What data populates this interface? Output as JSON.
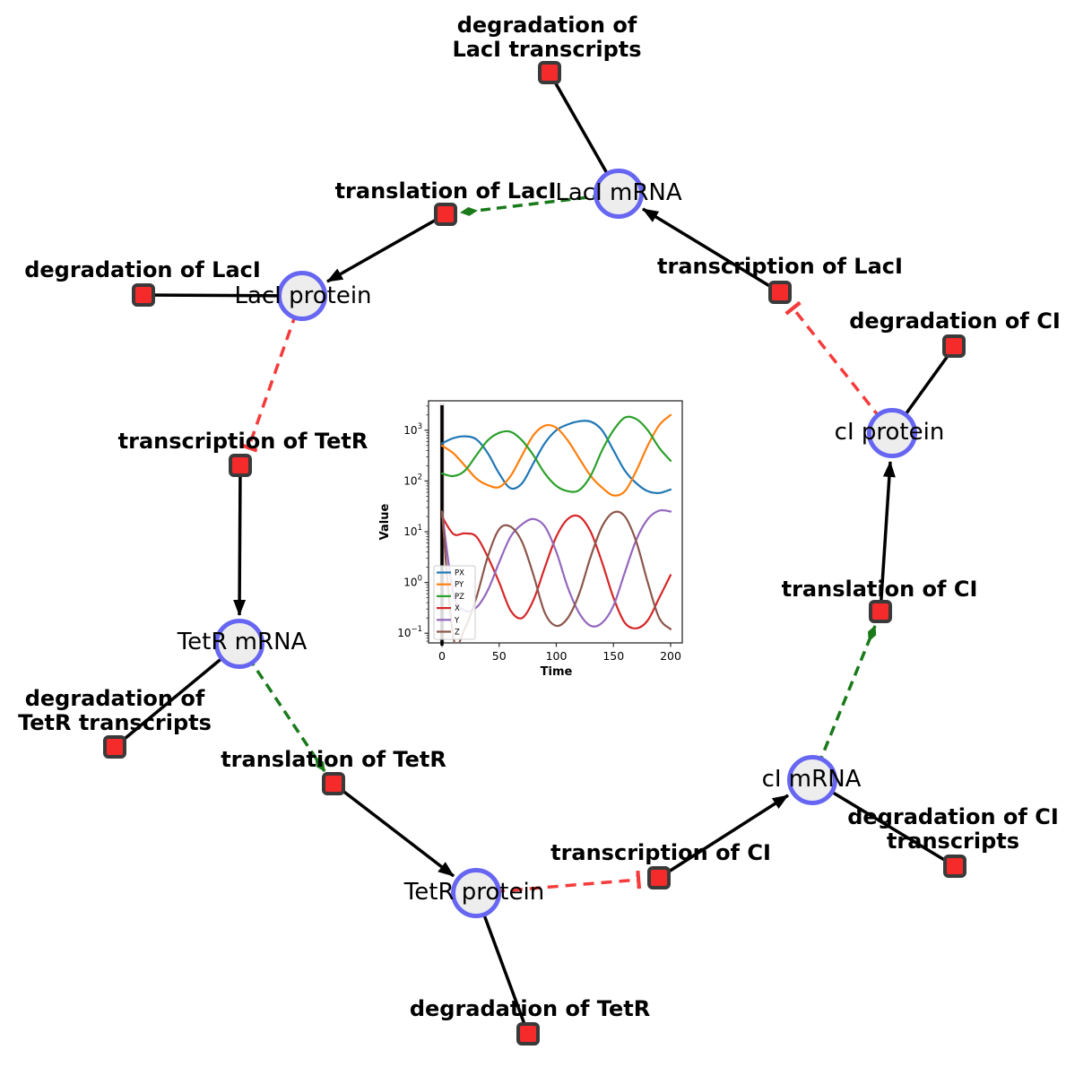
{
  "diagram": {
    "species": [
      {
        "id": "laci-mrna",
        "label": "LacI mRNA"
      },
      {
        "id": "laci-protein",
        "label": "LacI protein"
      },
      {
        "id": "tetr-mrna",
        "label": "TetR mRNA"
      },
      {
        "id": "tetr-protein",
        "label": "TetR protein"
      },
      {
        "id": "ci-mrna",
        "label": "cI mRNA"
      },
      {
        "id": "ci-protein",
        "label": "cI protein"
      }
    ],
    "reactions": [
      {
        "id": "degradation-laci-transcripts",
        "label": "degradation of LacI transcripts"
      },
      {
        "id": "translation-laci",
        "label": "translation of LacI"
      },
      {
        "id": "transcription-laci",
        "label": "transcription of LacI"
      },
      {
        "id": "degradation-laci",
        "label": "degradation of LacI"
      },
      {
        "id": "transcription-tetr",
        "label": "transcription of TetR"
      },
      {
        "id": "degradation-tetr-transcripts",
        "label": "degradation of TetR transcripts"
      },
      {
        "id": "translation-tetr",
        "label": "translation of TetR"
      },
      {
        "id": "degradation-tetr",
        "label": "degradation of TetR"
      },
      {
        "id": "transcription-ci",
        "label": "transcription of CI"
      },
      {
        "id": "degradation-ci-transcripts",
        "label": "degradation of CI transcripts"
      },
      {
        "id": "translation-ci",
        "label": "translation of CI"
      },
      {
        "id": "degradation-ci",
        "label": "degradation of CI"
      }
    ],
    "edges": [
      {
        "from": "laci-mrna",
        "to": "degradation-laci-transcripts",
        "type": "consumption"
      },
      {
        "from": "laci-mrna",
        "to": "translation-laci",
        "type": "modifier"
      },
      {
        "from": "transcription-laci",
        "to": "laci-mrna",
        "type": "production"
      },
      {
        "from": "translation-laci",
        "to": "laci-protein",
        "type": "production"
      },
      {
        "from": "laci-protein",
        "to": "degradation-laci",
        "type": "consumption"
      },
      {
        "from": "laci-protein",
        "to": "transcription-tetr",
        "type": "inhibition"
      },
      {
        "from": "transcription-tetr",
        "to": "tetr-mrna",
        "type": "production"
      },
      {
        "from": "tetr-mrna",
        "to": "degradation-tetr-transcripts",
        "type": "consumption"
      },
      {
        "from": "tetr-mrna",
        "to": "translation-tetr",
        "type": "modifier"
      },
      {
        "from": "translation-tetr",
        "to": "tetr-protein",
        "type": "production"
      },
      {
        "from": "tetr-protein",
        "to": "degradation-tetr",
        "type": "consumption"
      },
      {
        "from": "tetr-protein",
        "to": "transcription-ci",
        "type": "inhibition"
      },
      {
        "from": "transcription-ci",
        "to": "ci-mrna",
        "type": "production"
      },
      {
        "from": "ci-mrna",
        "to": "degradation-ci-transcripts",
        "type": "consumption"
      },
      {
        "from": "ci-mrna",
        "to": "translation-ci",
        "type": "modifier"
      },
      {
        "from": "translation-ci",
        "to": "ci-protein",
        "type": "production"
      },
      {
        "from": "ci-protein",
        "to": "degradation-ci",
        "type": "consumption"
      },
      {
        "from": "ci-protein",
        "to": "transcription-laci",
        "type": "inhibition"
      }
    ],
    "colors": {
      "species_fill": "#ededed",
      "species_border": "#6666f2",
      "reaction_fill": "#f52a2a",
      "reaction_border": "#3a3a3a",
      "edge_plain": "#000000",
      "edge_modifier": "#1a7a1a",
      "edge_inhibition": "#f53b3b"
    }
  },
  "chart_data": {
    "type": "line",
    "title": "",
    "xlabel": "Time",
    "ylabel": "Value",
    "x_scale": "linear",
    "y_scale": "log",
    "xlim": [
      0,
      200
    ],
    "ylim": [
      0.0645,
      3800
    ],
    "x_ticks": [
      0,
      50,
      100,
      150,
      200
    ],
    "y_tick_exponents": [
      3,
      2,
      1,
      0,
      -1
    ],
    "legend_position": "lower left",
    "grid": false,
    "x": [
      0,
      10,
      20,
      30,
      40,
      50,
      60,
      70,
      80,
      90,
      100,
      110,
      120,
      130,
      140,
      150,
      160,
      170,
      180,
      190,
      200
    ],
    "series": [
      {
        "name": "PX",
        "color": "#1f77b4",
        "values": [
          550,
          700,
          760,
          660,
          355,
          140,
          72,
          90,
          225,
          560,
          1000,
          1300,
          1500,
          1480,
          1000,
          400,
          160,
          90,
          63,
          58,
          68
        ]
      },
      {
        "name": "PY",
        "color": "#ff7f0e",
        "values": [
          500,
          350,
          200,
          112,
          83,
          76,
          125,
          320,
          800,
          1230,
          1120,
          630,
          280,
          126,
          74,
          52,
          63,
          160,
          500,
          1260,
          2000
        ]
      },
      {
        "name": "PZ",
        "color": "#2ca02c",
        "values": [
          140,
          125,
          160,
          320,
          630,
          890,
          930,
          630,
          320,
          140,
          80,
          63,
          66,
          126,
          400,
          1000,
          1780,
          1660,
          1000,
          450,
          250
        ]
      },
      {
        "name": "X",
        "color": "#d62728",
        "values": [
          20,
          9,
          9.3,
          8,
          3.2,
          1.0,
          0.28,
          0.2,
          0.45,
          2,
          8,
          17.8,
          20,
          10,
          2.5,
          0.5,
          0.16,
          0.125,
          0.18,
          0.5,
          1.4
        ]
      },
      {
        "name": "Y",
        "color": "#9467bd",
        "values": [
          25,
          0.6,
          0.28,
          0.32,
          0.7,
          2.5,
          8,
          14,
          17.8,
          12.6,
          4,
          0.8,
          0.25,
          0.14,
          0.16,
          0.35,
          1.6,
          7,
          17.8,
          26,
          25
        ]
      },
      {
        "name": "Z",
        "color": "#8c564b",
        "values": [
          25,
          0.08,
          0.125,
          0.5,
          3.2,
          11.2,
          12.6,
          6.3,
          1.4,
          0.25,
          0.14,
          0.2,
          0.6,
          3.2,
          12.6,
          24,
          20,
          6.3,
          1.0,
          0.2,
          0.12
        ]
      }
    ]
  }
}
